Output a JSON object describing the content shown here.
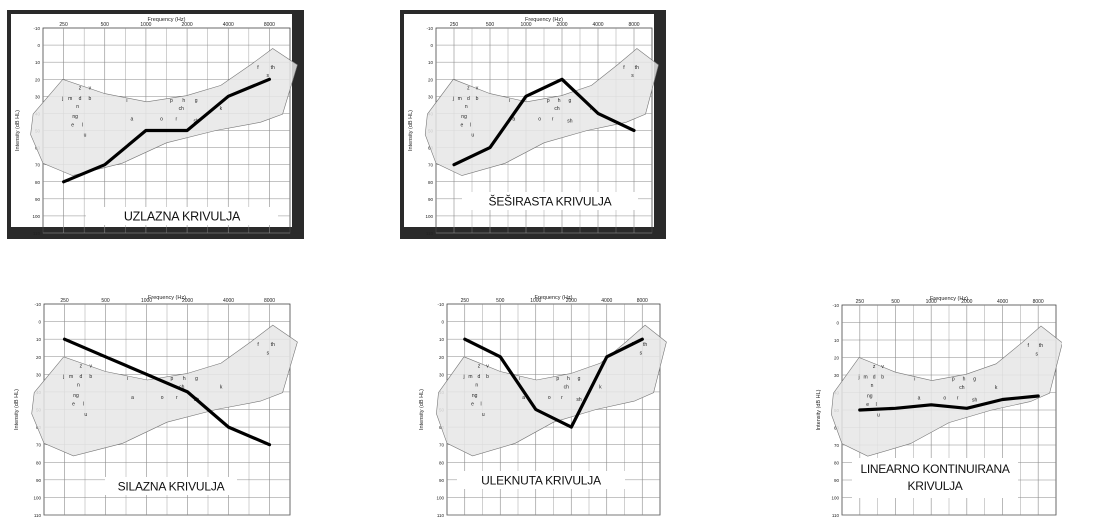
{
  "axis": {
    "x_title": "Frequency (Hz)",
    "y_title": "Intensity (dB HL)",
    "x_ticks": [
      "250",
      "500",
      "1000",
      "2000",
      "4000",
      "8000"
    ],
    "y_ticks": [
      "-10",
      "0",
      "10",
      "20",
      "30",
      "40",
      "50",
      "60",
      "70",
      "80",
      "90",
      "100",
      "110"
    ],
    "ylim": [
      -10,
      110
    ]
  },
  "speech_banana": {
    "letters": [
      "z",
      "v",
      "j",
      "m",
      "d",
      "b",
      "n",
      "ng",
      "e",
      "l",
      "u",
      "i",
      "a",
      "o",
      "r",
      "p",
      "h",
      "g",
      "ch",
      "sh",
      "k",
      "f",
      "s",
      "th"
    ]
  },
  "colors": {
    "curve": "#000000",
    "grid": "#444444",
    "banana": "#e6e6e6",
    "dark_frame": "#2a2a2a"
  },
  "chart_data": [
    {
      "type": "line",
      "title": "UZLAZNA KRIVULJA",
      "frame": "dark",
      "x": [
        "250",
        "500",
        "1000",
        "2000",
        "4000",
        "8000"
      ],
      "series": [
        {
          "values": [
            80,
            70,
            50,
            50,
            30,
            20
          ]
        }
      ],
      "ylim": [
        -10,
        110
      ]
    },
    {
      "type": "line",
      "title": "ŠEŠIRASTA KRIVULJA",
      "frame": "dark",
      "x": [
        "250",
        "500",
        "1000",
        "2000",
        "4000",
        "8000"
      ],
      "series": [
        {
          "values": [
            70,
            60,
            30,
            20,
            40,
            50
          ]
        }
      ],
      "ylim": [
        -10,
        110
      ]
    },
    {
      "type": "line",
      "title": "SILAZNA KRIVULJA",
      "frame": "none",
      "x": [
        "250",
        "500",
        "1000",
        "2000",
        "4000",
        "8000"
      ],
      "series": [
        {
          "values": [
            10,
            20,
            30,
            40,
            60,
            70
          ]
        }
      ],
      "ylim": [
        -10,
        110
      ]
    },
    {
      "type": "line",
      "title": "ULEKNUTA KRIVULJA",
      "frame": "none",
      "x": [
        "250",
        "500",
        "1000",
        "2000",
        "4000",
        "8000"
      ],
      "series": [
        {
          "values": [
            10,
            20,
            50,
            60,
            20,
            10
          ]
        }
      ],
      "ylim": [
        -10,
        110
      ]
    },
    {
      "type": "line",
      "title": "LINEARNO KONTINUIRANA KRIVULJA",
      "frame": "none",
      "x": [
        "250",
        "500",
        "1000",
        "2000",
        "4000",
        "8000"
      ],
      "series": [
        {
          "values": [
            50,
            49,
            47,
            49,
            44,
            42
          ]
        }
      ],
      "ylim": [
        -10,
        110
      ]
    }
  ]
}
